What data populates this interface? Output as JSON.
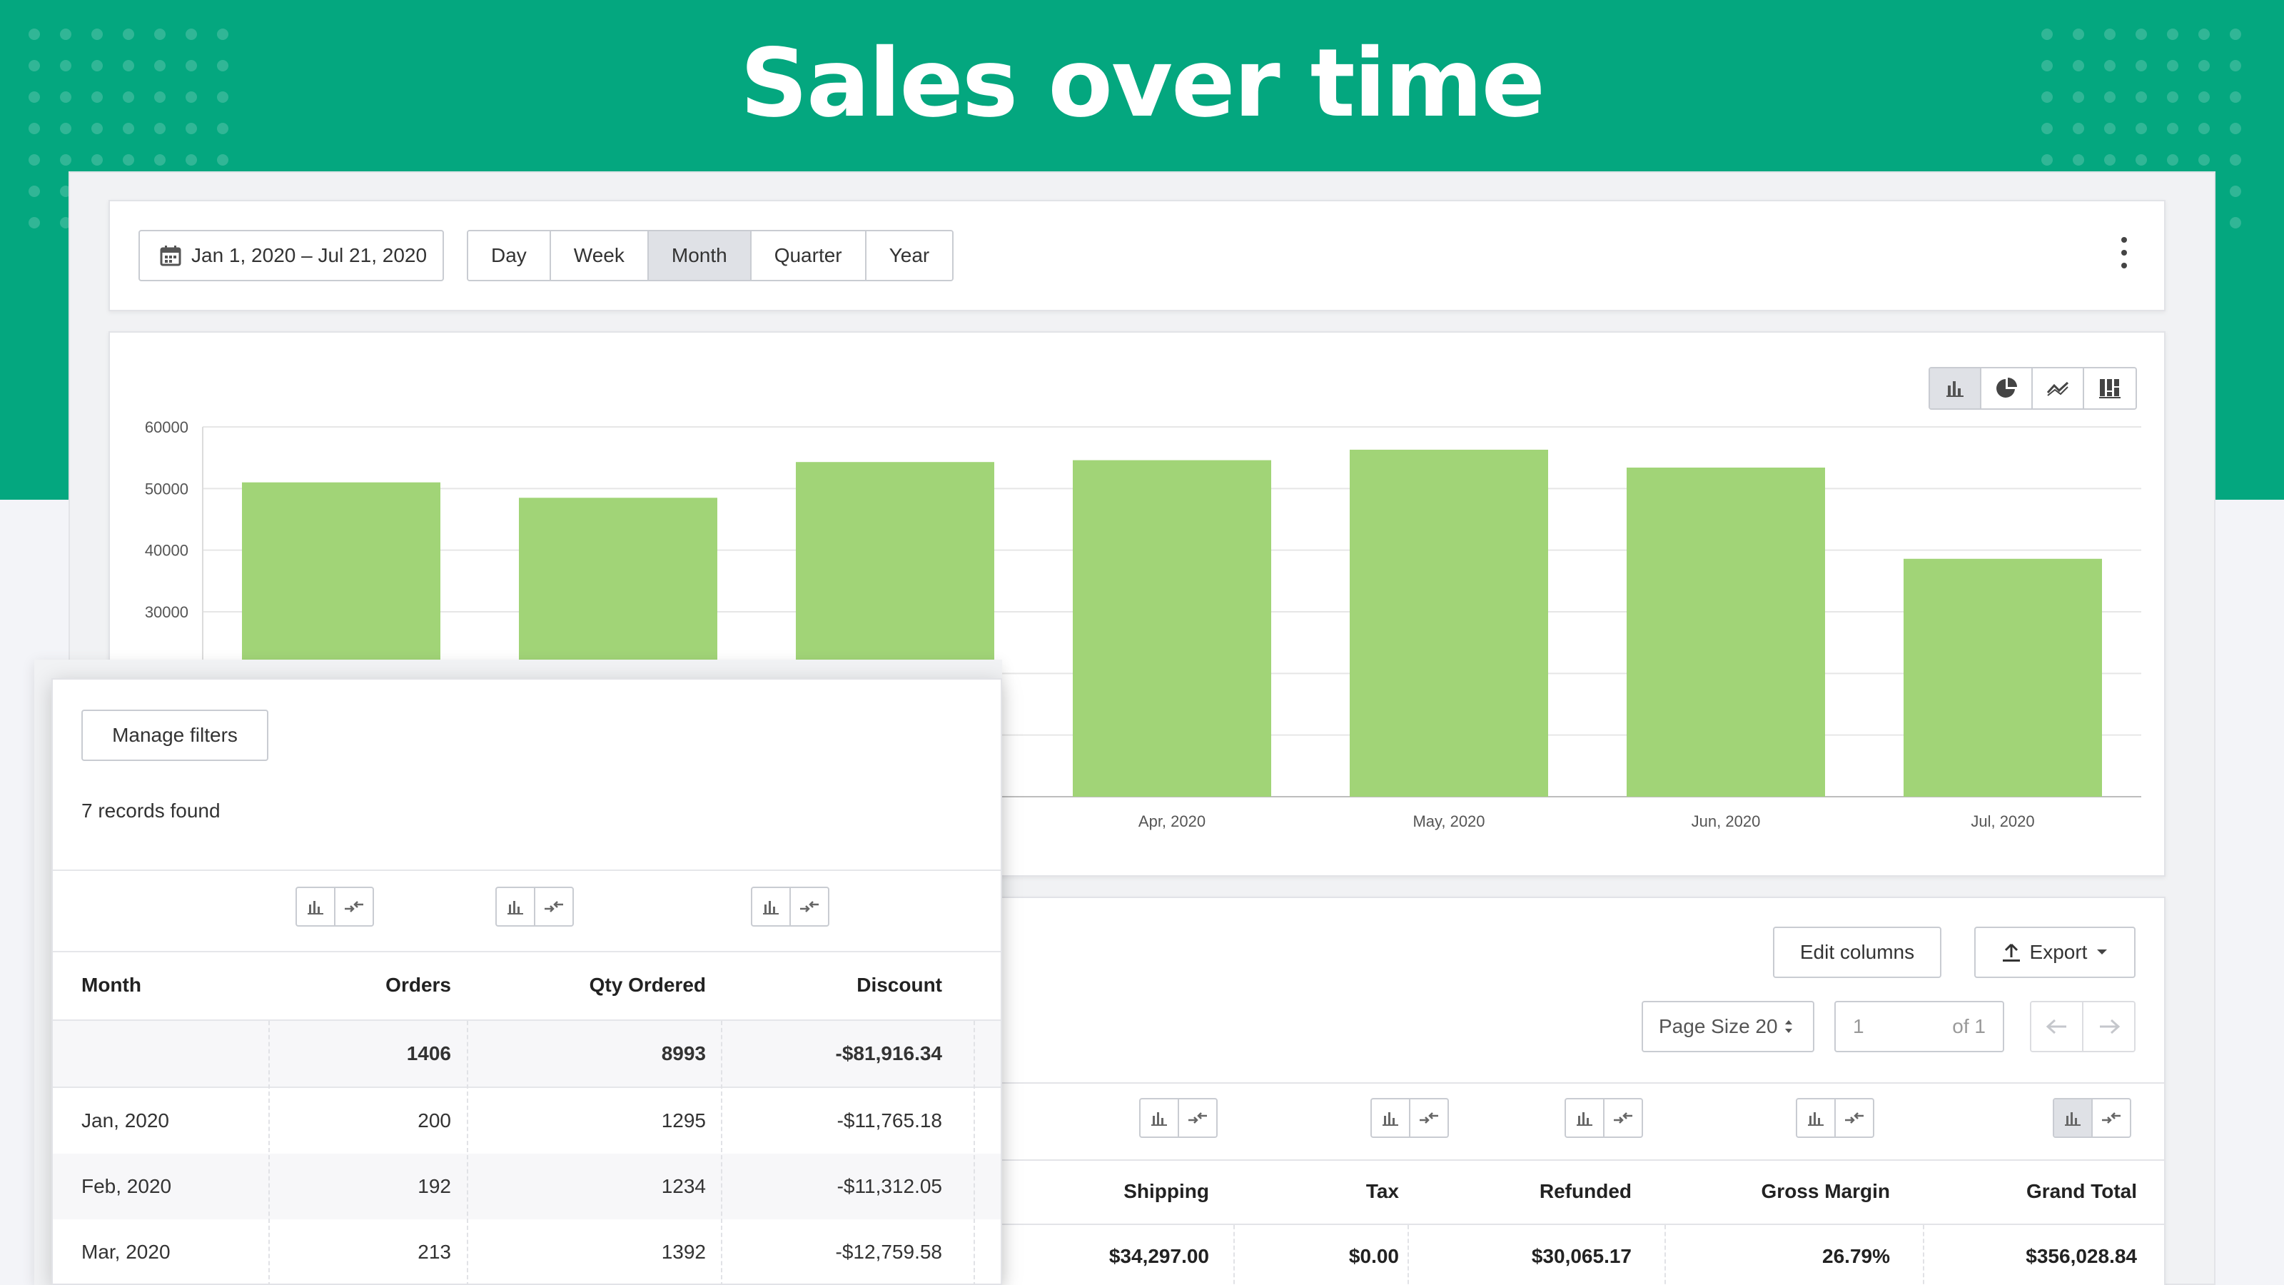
{
  "hero": {
    "title": "Sales over time"
  },
  "toolbar": {
    "date_range": "Jan 1, 2020 – Jul 21, 2020",
    "periods": [
      "Day",
      "Week",
      "Month",
      "Quarter",
      "Year"
    ],
    "active_period": "Month",
    "more_icon": "kebab-menu-icon"
  },
  "chart_controls": {
    "icons": [
      "bar-chart-icon",
      "pie-chart-icon",
      "line-chart-icon",
      "stacked-chart-icon"
    ],
    "active": "bar-chart-icon"
  },
  "chart_data": {
    "type": "bar",
    "categories": [
      "Jan, 2020",
      "Feb, 2020",
      "Mar, 2020",
      "Apr, 2020",
      "May, 2020",
      "Jun, 2020",
      "Jul, 2020"
    ],
    "visible_x_labels": [
      "",
      "",
      "",
      "Apr, 2020",
      "May, 2020",
      "Jun, 2020",
      "Jul, 2020"
    ],
    "values": [
      51000,
      48500,
      54300,
      54600,
      56300,
      53400,
      38600
    ],
    "yticks": [
      30000,
      40000,
      50000,
      60000
    ],
    "ylim": [
      0,
      60000
    ],
    "bar_color": "#a1d477",
    "grid": true
  },
  "table": {
    "edit_columns": "Edit columns",
    "export": "Export",
    "page_size_label": "Page Size 20",
    "page_current": "1",
    "page_of": "of 1",
    "columns": [
      "Shipping",
      "Tax",
      "Refunded",
      "Gross Margin",
      "Grand Total"
    ],
    "totals": [
      "$34,297.00",
      "$0.00",
      "$30,065.17",
      "26.79%",
      "$356,028.84"
    ]
  },
  "overlay": {
    "manage_filters": "Manage filters",
    "records_found": "7 records found",
    "columns": [
      "Month",
      "Orders",
      "Qty Ordered",
      "Discount"
    ],
    "totals": [
      "",
      "1406",
      "8993",
      "-$81,916.34"
    ],
    "rows": [
      [
        "Jan, 2020",
        "200",
        "1295",
        "-$11,765.18"
      ],
      [
        "Feb, 2020",
        "192",
        "1234",
        "-$11,312.05"
      ],
      [
        "Mar, 2020",
        "213",
        "1392",
        "-$12,759.58"
      ]
    ]
  },
  "colors": {
    "brand": "#04a77f",
    "bar": "#a1d477",
    "active_btn": "#dfe1e6"
  }
}
